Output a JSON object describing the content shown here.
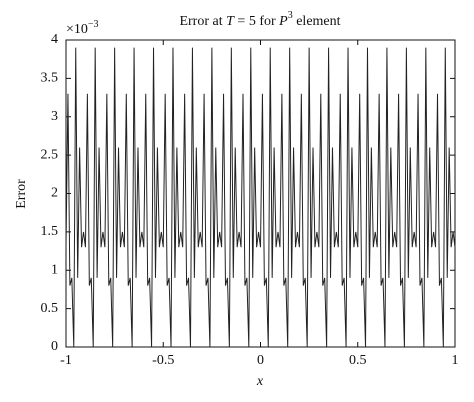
{
  "chart_data": {
    "type": "line",
    "title": [
      "Error at ",
      "T",
      " = 5 for ",
      "P",
      "3",
      " element"
    ],
    "y_multiplier": [
      "×10",
      "−3"
    ],
    "xlabel": "x",
    "ylabel": "Error",
    "xlim": [
      -1,
      1
    ],
    "ylim": [
      0,
      4
    ],
    "xticks": [
      -1,
      -0.5,
      0,
      0.5,
      1
    ],
    "yticks": [
      0,
      0.5,
      1,
      1.5,
      2,
      2.5,
      3,
      3.5,
      4
    ],
    "color": "#222222",
    "x": [
      -1,
      -0.99,
      -0.98,
      -0.97,
      -0.96,
      -0.95,
      -0.94,
      -0.93,
      -0.92,
      -0.91,
      -0.9,
      -0.89,
      -0.88,
      -0.87,
      -0.86,
      -0.85,
      -0.84,
      -0.83,
      -0.82,
      -0.81,
      -0.8,
      -0.79,
      -0.78,
      -0.77,
      -0.76,
      -0.75,
      -0.74,
      -0.73,
      -0.72,
      -0.71,
      -0.7,
      -0.69,
      -0.68,
      -0.67,
      -0.66,
      -0.65,
      -0.64,
      -0.63,
      -0.62,
      -0.61,
      -0.6,
      -0.59,
      -0.58,
      -0.57,
      -0.56,
      -0.55,
      -0.54,
      -0.53,
      -0.52,
      -0.51,
      -0.5,
      -0.49,
      -0.48,
      -0.47,
      -0.46,
      -0.45,
      -0.44,
      -0.43,
      -0.42,
      -0.41,
      -0.4,
      -0.39,
      -0.38,
      -0.37,
      -0.36,
      -0.35,
      -0.34,
      -0.33,
      -0.32,
      -0.31,
      -0.3,
      -0.29,
      -0.28,
      -0.27,
      -0.26,
      -0.25,
      -0.24,
      -0.23,
      -0.22,
      -0.21,
      -0.2,
      -0.19,
      -0.18,
      -0.17,
      -0.16,
      -0.15,
      -0.14,
      -0.13,
      -0.12,
      -0.11,
      -0.1,
      -0.09,
      -0.08,
      -0.07,
      -0.06,
      -0.05,
      -0.04,
      -0.03,
      -0.02,
      -0.01,
      0,
      0.01,
      0.02,
      0.03,
      0.04,
      0.05,
      0.06,
      0.07,
      0.08,
      0.09,
      0.1,
      0.11,
      0.12,
      0.13,
      0.14,
      0.15,
      0.16,
      0.17,
      0.18,
      0.19,
      0.2,
      0.21,
      0.22,
      0.23,
      0.24,
      0.25,
      0.26,
      0.27,
      0.28,
      0.29,
      0.3,
      0.31,
      0.32,
      0.33,
      0.34,
      0.35,
      0.36,
      0.37,
      0.38,
      0.39,
      0.4,
      0.41,
      0.42,
      0.43,
      0.44,
      0.45,
      0.46,
      0.47,
      0.48,
      0.49,
      0.5,
      0.51,
      0.52,
      0.53,
      0.54,
      0.55,
      0.56,
      0.57,
      0.58,
      0.59,
      0.6,
      0.61,
      0.62,
      0.63,
      0.64,
      0.65,
      0.66,
      0.67,
      0.68,
      0.69,
      0.7,
      0.71,
      0.72,
      0.73,
      0.74,
      0.75,
      0.76,
      0.77,
      0.78,
      0.79,
      0.8,
      0.81,
      0.82,
      0.83,
      0.84,
      0.85,
      0.86,
      0.87,
      0.88,
      0.89,
      0.9,
      0.91,
      0.92,
      0.93,
      0.94,
      0.95,
      0.96,
      0.97,
      0.98,
      0.99,
      1
    ],
    "values": [
      1.3,
      3.3,
      0.8,
      0.9,
      0,
      3.9,
      0.9,
      2.6,
      1.3,
      1.5,
      1.3,
      3.3,
      0.8,
      0.9,
      0,
      3.9,
      0.9,
      2.6,
      1.3,
      1.5,
      1.3,
      3.3,
      0.8,
      0.9,
      0,
      3.9,
      0.9,
      2.6,
      1.3,
      1.5,
      1.3,
      3.3,
      0.8,
      0.9,
      0,
      3.9,
      0.9,
      2.6,
      1.3,
      1.5,
      1.3,
      3.3,
      0.8,
      0.9,
      0,
      3.9,
      0.9,
      2.6,
      1.3,
      1.5,
      1.3,
      3.3,
      0.8,
      0.9,
      0,
      3.9,
      0.9,
      2.6,
      1.3,
      1.5,
      1.3,
      3.3,
      0.8,
      0.9,
      0,
      3.9,
      0.9,
      2.6,
      1.3,
      1.5,
      1.3,
      3.3,
      0.8,
      0.9,
      0,
      3.9,
      0.9,
      2.6,
      1.3,
      1.5,
      1.3,
      3.3,
      0.8,
      0.9,
      0,
      3.9,
      0.9,
      2.6,
      1.3,
      1.5,
      1.3,
      3.3,
      0.8,
      0.9,
      0,
      3.9,
      0.9,
      2.6,
      1.3,
      1.5,
      1.3,
      3.3,
      0.8,
      0.9,
      0,
      3.9,
      0.9,
      2.6,
      1.3,
      1.5,
      1.3,
      3.3,
      0.8,
      0.9,
      0,
      3.9,
      0.9,
      2.6,
      1.3,
      1.5,
      1.3,
      3.3,
      0.8,
      0.9,
      0,
      3.9,
      0.9,
      2.6,
      1.3,
      1.5,
      1.3,
      3.3,
      0.8,
      0.9,
      0,
      3.9,
      0.9,
      2.6,
      1.3,
      1.5,
      1.3,
      3.3,
      0.8,
      0.9,
      0,
      3.9,
      0.9,
      2.6,
      1.3,
      1.5,
      1.3,
      3.3,
      0.8,
      0.9,
      0,
      3.9,
      0.9,
      2.6,
      1.3,
      1.5,
      1.3,
      3.3,
      0.8,
      0.9,
      0,
      3.9,
      0.9,
      2.6,
      1.3,
      1.5,
      1.3,
      3.3,
      0.8,
      0.9,
      0,
      3.9,
      0.9,
      2.6,
      1.3,
      1.5,
      1.3,
      3.3,
      0.8,
      0.9,
      0,
      3.9,
      0.9,
      2.6,
      1.3,
      1.5,
      1.3,
      3.3,
      0.8,
      0.9,
      0,
      3.9,
      0.9,
      2.6,
      1.3,
      1.5,
      1.3
    ]
  }
}
